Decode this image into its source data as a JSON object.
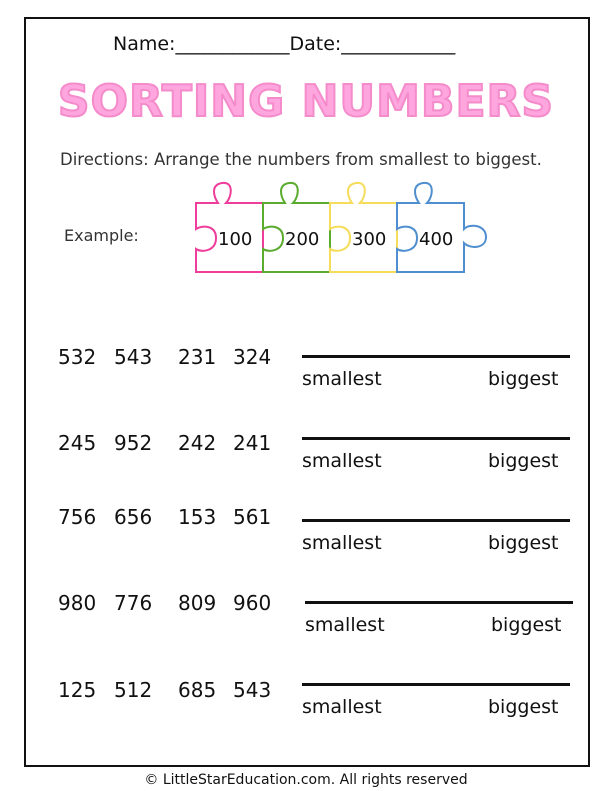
{
  "header": {
    "name_label": "Name:____________",
    "date_label": "Date:____________"
  },
  "title": "SORTING NUMBERS",
  "directions": "Directions: Arrange the numbers from smallest to biggest.",
  "example": {
    "label": "Example:",
    "pieces": [
      {
        "value": "100",
        "color": "#ee3d9a"
      },
      {
        "value": "200",
        "color": "#5aab2e"
      },
      {
        "value": "300",
        "color": "#f5dc5a"
      },
      {
        "value": "400",
        "color": "#4f8fcf"
      }
    ]
  },
  "rows": [
    {
      "numbers": [
        "532",
        "543",
        "231",
        "324"
      ],
      "left_label": "smallest",
      "right_label": "biggest"
    },
    {
      "numbers": [
        "245",
        "952",
        "242",
        "241"
      ],
      "left_label": "smallest",
      "right_label": "biggest"
    },
    {
      "numbers": [
        "756",
        "656",
        "153",
        "561"
      ],
      "left_label": "smallest",
      "right_label": "biggest"
    },
    {
      "numbers": [
        "980",
        "776",
        "809",
        "960"
      ],
      "left_label": "smallest",
      "right_label": "biggest"
    },
    {
      "numbers": [
        "125",
        "512",
        "685",
        "543"
      ],
      "left_label": "smallest",
      "right_label": "biggest"
    }
  ],
  "footer": "© LittleStarEducation.com. All rights reserved"
}
